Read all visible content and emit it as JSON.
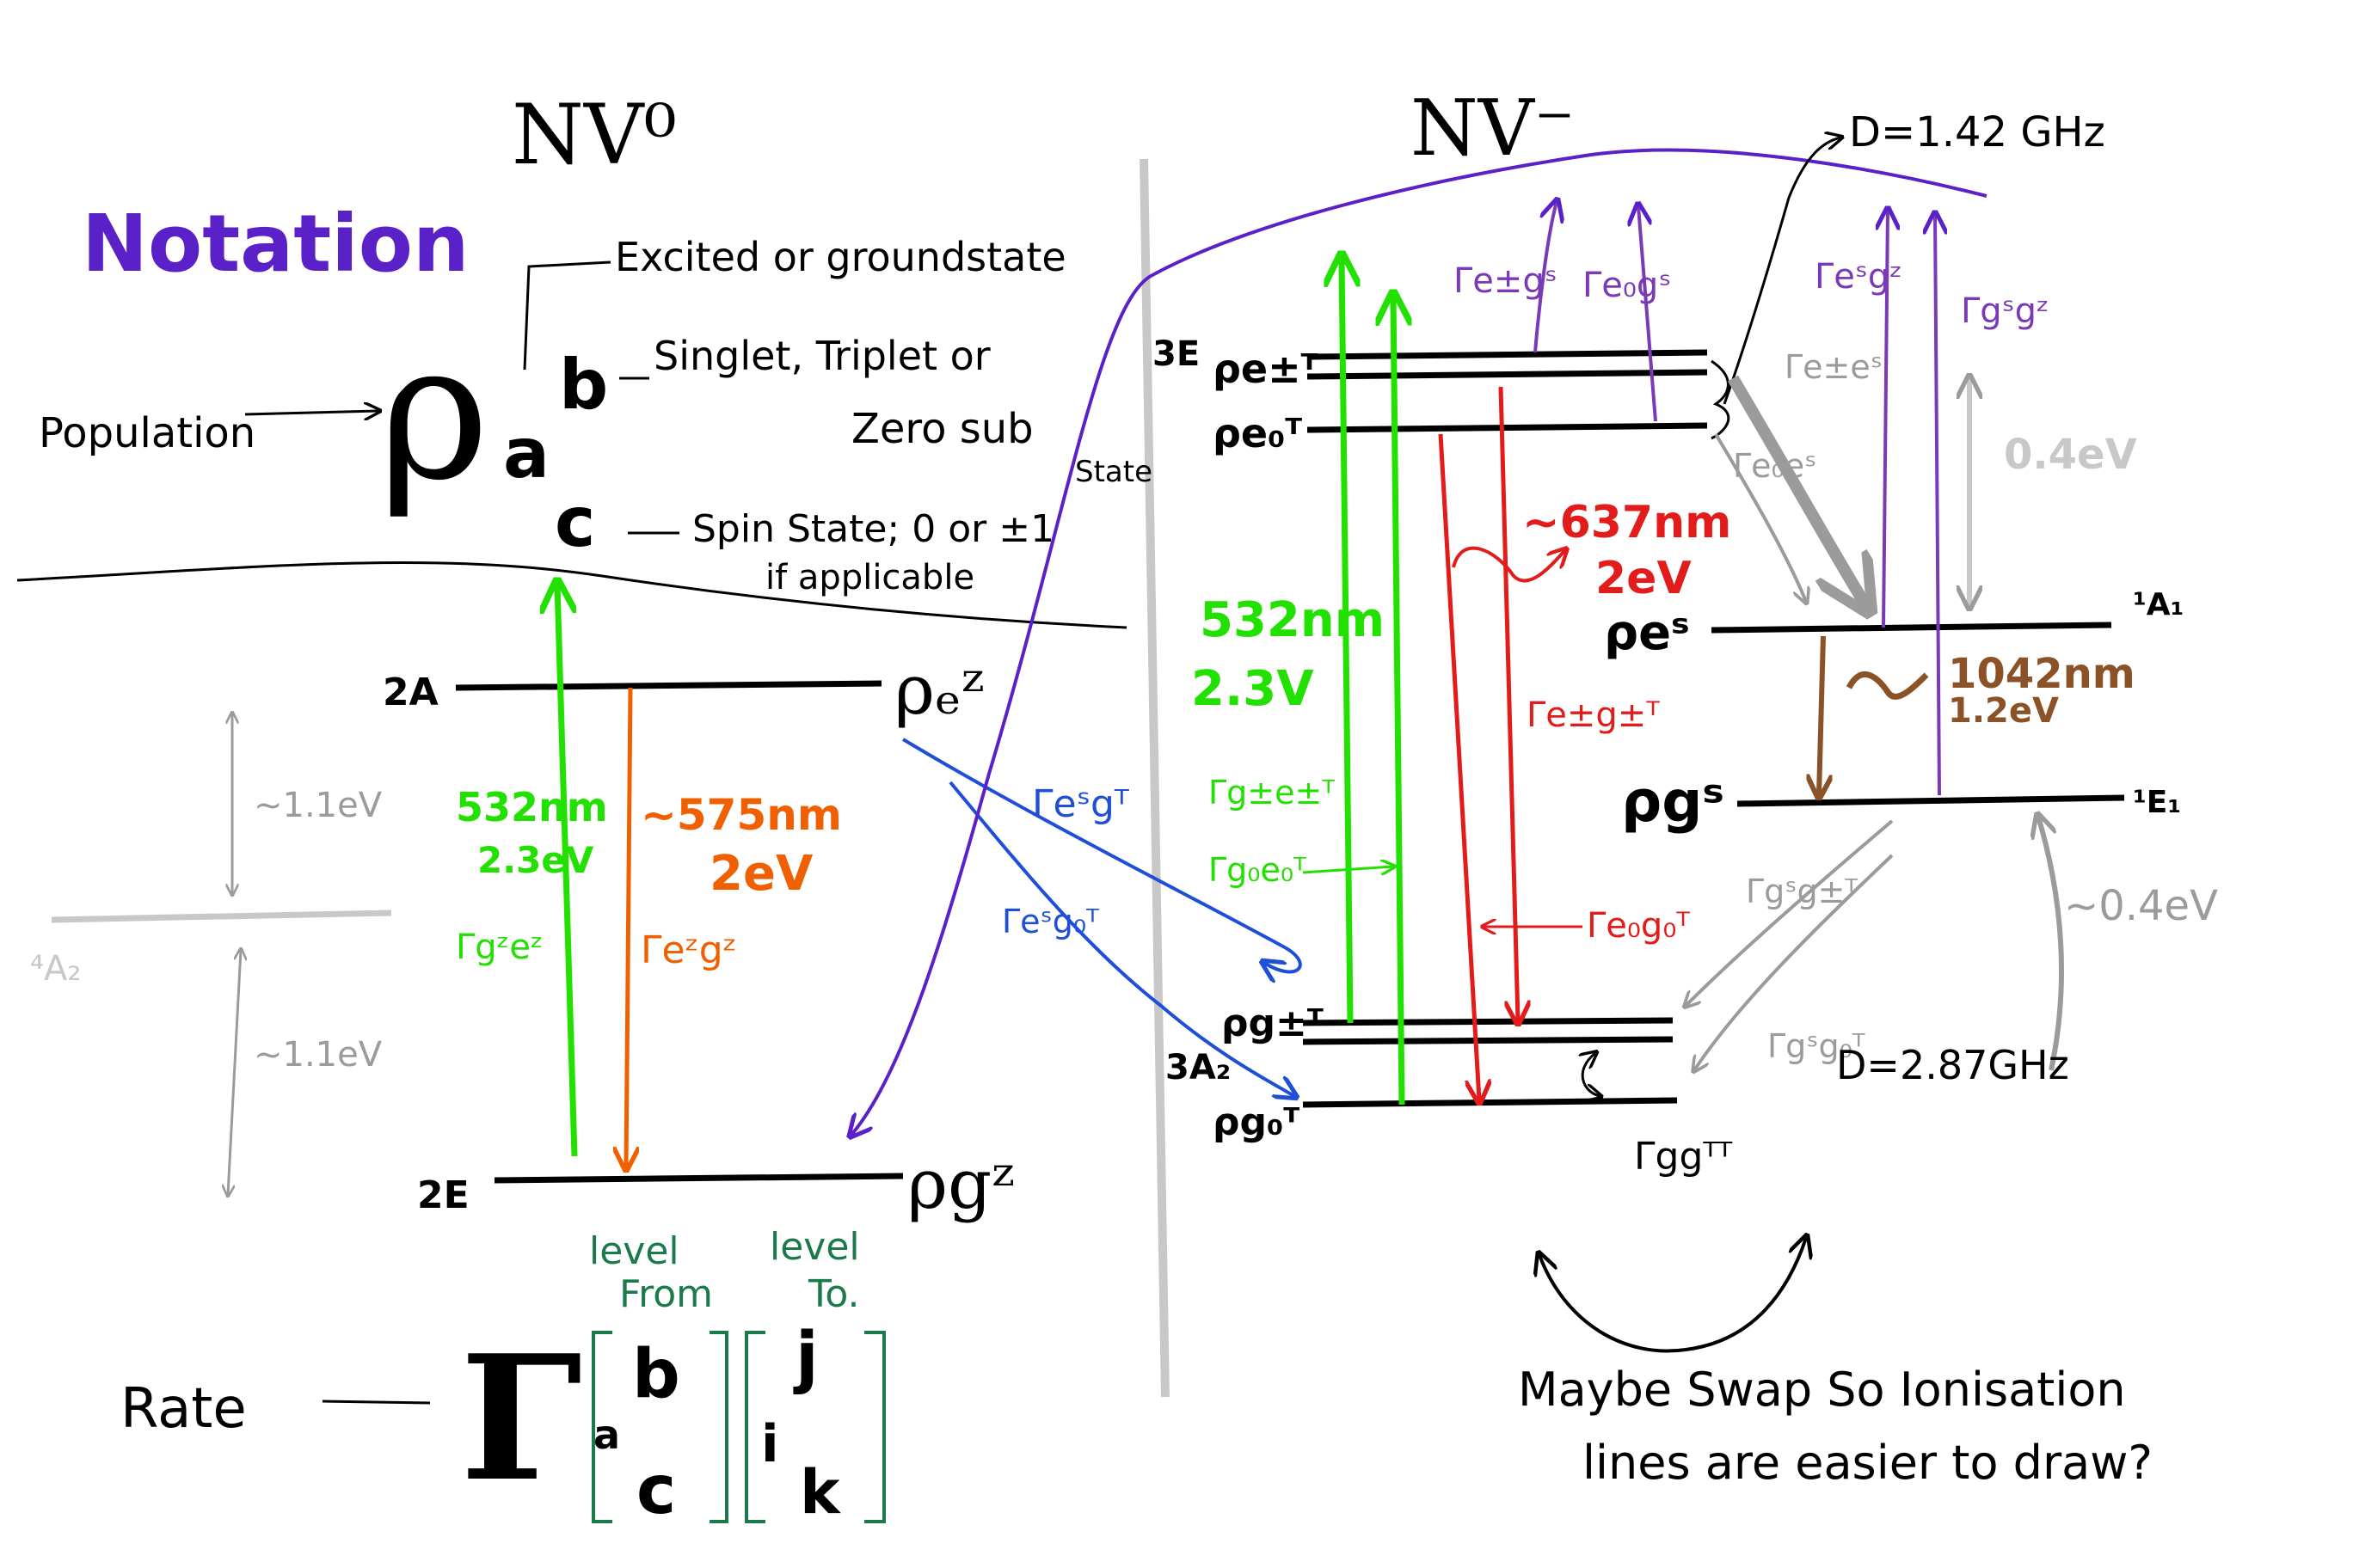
{
  "colors": {
    "black": "#000000",
    "purple": "#5b21c8",
    "green": "#22e000",
    "orange": "#f06000",
    "red": "#e21b1b",
    "blue": "#1f4fd8",
    "gray": "#9b9b9b",
    "lightgray": "#c8c8c8",
    "teal": "#1a7a4a",
    "brown": "#8a5226",
    "violet": "#7a3ab8"
  },
  "headings": {
    "nv0": "NV⁰",
    "nvminus": "NV⁻",
    "notation": "Notation"
  },
  "notation": {
    "rho": "ρ",
    "sub_a": "a",
    "sup_b": "b",
    "sub_c": "c",
    "population": "Population",
    "excited": "Excited or groundstate",
    "singlet_triplet": "Singlet, Triplet or",
    "zero_sub": "Zero sub",
    "state": "State",
    "spin_state": "Spin State; 0 or ±1",
    "if_applicable": "if applicable",
    "rate": "Rate",
    "gamma": "Γ",
    "bracket_b": "b",
    "bracket_a": "a",
    "bracket_c": "c",
    "bracket_j": "j",
    "bracket_i": "i",
    "bracket_k": "k",
    "level_from_1": "level",
    "level_from_2": "From",
    "level_to_1": "level",
    "level_to_2": "To."
  },
  "nv0": {
    "label_2A": "2A",
    "label_2E": "2E",
    "label_4A2": "⁴A₂",
    "rho_e_z": "ρₑᶻ",
    "rho_g_z": "ρgᶻ",
    "green_wl": "532nm",
    "green_ev": "2.3eV",
    "green_rate": "Γgᶻeᶻ",
    "orange_wl": "~575nm",
    "orange_ev": "2eV",
    "orange_rate": "Γeᶻgᶻ",
    "gap_upper": "~1.1eV",
    "gap_lower": "~1.1eV",
    "blue_rate_1": "Γeˢgᵀ",
    "blue_rate_2": "Γeˢg₀ᵀ"
  },
  "nvminus": {
    "label_3E": "3E",
    "label_3A2": "3A₂",
    "label_1A1": "¹A₁",
    "label_1E1": "¹E₁",
    "rho_e1_T": "ρe±ᵀ",
    "rho_e0_T": "ρe₀ᵀ",
    "rho_g1_T": "ρg±ᵀ",
    "rho_g0_T": "ρg₀ᵀ",
    "rho_e_S": "ρeˢ",
    "rho_g_S": "ρgˢ",
    "D_excited": "D=1.42 GHz",
    "D_ground": "D=2.87GHz",
    "green_wl": "532nm",
    "green_ev": "2.3V",
    "green_rate_1": "Γg±e±ᵀ",
    "green_rate_2": "Γg₀e₀ᵀ",
    "red_wl": "~637nm",
    "red_ev": "2eV",
    "red_rate_1": "Γe±g±ᵀ",
    "red_rate_2": "Γe₀g₀ᵀ",
    "ir_wl": "1042nm",
    "ir_ev": "1.2eV",
    "gap_top": "0.4eV",
    "gap_bottom": "~0.4eV",
    "rate_gg": "Γggᵀᵀ",
    "purple_rate_1": "Γe±gˢ",
    "purple_rate_2": "Γe₀gˢ",
    "purple_rate_3": "Γeˢgᶻ",
    "purple_rate_4": "Γgˢgᶻ",
    "gray_rate_1": "Γe±eˢ",
    "gray_rate_2": "Γe₀eˢ",
    "gray_rate_3": "Γgˢg±ᵀ",
    "gray_rate_4": "Γgˢg₀ᵀ"
  },
  "note": {
    "line1": "Maybe Swap So Ionisation",
    "line2": "lines are easier to draw?"
  }
}
